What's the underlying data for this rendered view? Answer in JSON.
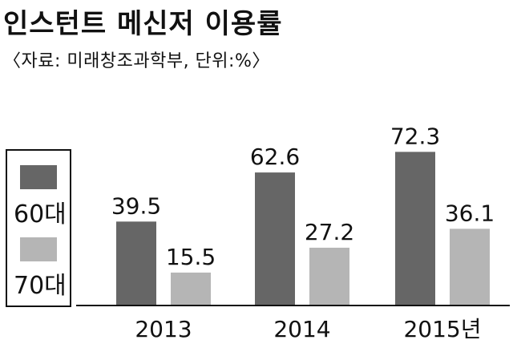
{
  "header": {
    "title": "인스턴트 메신저 이용률",
    "source": "〈자료: 미래창조과학부, 단위:%〉"
  },
  "chart_data": {
    "type": "bar",
    "categories": [
      "2013",
      "2014",
      "2015년"
    ],
    "series": [
      {
        "name": "60대",
        "values": [
          39.5,
          62.6,
          72.3
        ],
        "color": "#666666"
      },
      {
        "name": "70대",
        "values": [
          15.5,
          27.2,
          36.1
        ],
        "color": "#b5b5b5"
      }
    ],
    "value_labels": [
      [
        "39.5",
        "62.6",
        "72.3"
      ],
      [
        "15.5",
        "27.2",
        "36.1"
      ]
    ],
    "ylim": [
      0,
      80
    ],
    "grid": false,
    "legend_position": "left"
  }
}
